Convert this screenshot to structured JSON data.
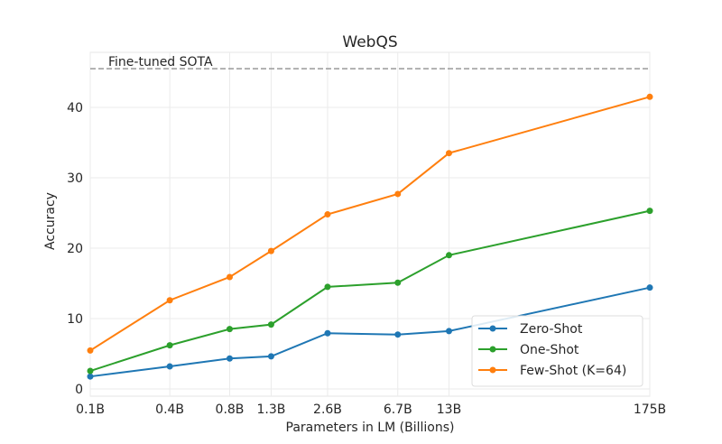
{
  "chart_data": {
    "type": "line",
    "title": "WebQS",
    "xlabel": "Parameters in LM (Billions)",
    "ylabel": "Accuracy",
    "x_scale": "log",
    "x": [
      0.125,
      0.35,
      0.76,
      1.3,
      2.7,
      6.7,
      13,
      175
    ],
    "xtick_labels": [
      "0.1B",
      "0.4B",
      "0.8B",
      "1.3B",
      "2.6B",
      "6.7B",
      "13B",
      "175B"
    ],
    "yticks": [
      0,
      10,
      20,
      30,
      40
    ],
    "ylim": [
      -1,
      47.5
    ],
    "grid": true,
    "legend_position": "bottom-right",
    "series": [
      {
        "name": "Zero-Shot",
        "color": "#1f77b4",
        "values": [
          1.77,
          3.2,
          4.33,
          4.63,
          7.92,
          7.73,
          8.22,
          14.4
        ]
      },
      {
        "name": "One-Shot",
        "color": "#2ca02c",
        "values": [
          2.56,
          6.2,
          8.51,
          9.15,
          14.5,
          15.1,
          19.0,
          25.3
        ]
      },
      {
        "name": "Few-Shot (K=64)",
        "color": "#ff7f0e",
        "values": [
          5.46,
          12.6,
          15.9,
          19.6,
          24.8,
          27.7,
          33.5,
          41.5
        ]
      }
    ],
    "reference_line": {
      "label": "Fine-tuned SOTA",
      "value": 45.5,
      "color": "#999999"
    }
  }
}
